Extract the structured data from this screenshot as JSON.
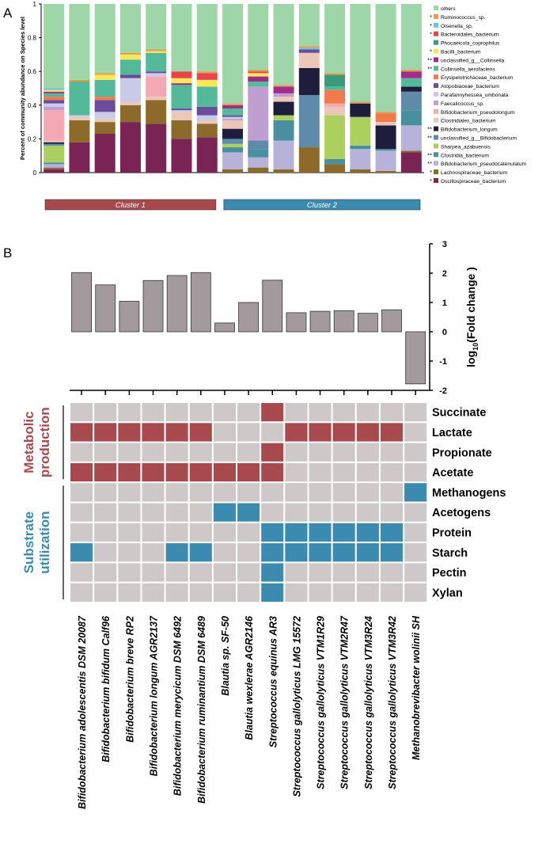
{
  "panel_labels": {
    "a": "A",
    "b": "B"
  },
  "chart_data": [
    {
      "type": "stacked-bar",
      "panel": "A",
      "ylabel": "Percent of community abundance on Species level",
      "ylim": [
        0,
        1
      ],
      "yticks": [
        "0",
        "0.2",
        "0.4",
        "0.6",
        "0.8",
        "1"
      ],
      "clusters": [
        {
          "label": "Cluster 1",
          "color": "#a84a4d",
          "samples": [
            1,
            7
          ]
        },
        {
          "label": "Cluster 2",
          "color": "#3b8bb0",
          "samples": [
            8,
            15
          ]
        }
      ],
      "species": [
        {
          "name": "Oscillospiraceae_bacterium",
          "color": "#7a2455",
          "mark": "*"
        },
        {
          "name": "Lachnospiraceae_bacterium",
          "color": "#8c6a2a",
          "mark": "*"
        },
        {
          "name": "Bifidobacterium_pseudocatenulatum",
          "color": "#b7b2d9",
          "mark": "**"
        },
        {
          "name": "Clostridia_bacterium",
          "color": "#4a8fa0",
          "mark": "**"
        },
        {
          "name": "Sharpea_azabuensis",
          "color": "#acd060",
          "mark": ""
        },
        {
          "name": "unclassified_g__Bifidobacterium",
          "color": "#5e8ba8",
          "mark": "**"
        },
        {
          "name": "Bifidobacterium_longum",
          "color": "#1e1e3c",
          "mark": "**"
        },
        {
          "name": "Clostridiales_bacterium",
          "color": "#ecc7b7",
          "mark": ""
        },
        {
          "name": "Bifidobacterium_pseudolongum",
          "color": "#f4a8b4",
          "mark": ""
        },
        {
          "name": "Faecalicoccus_sp.",
          "color": "#bf9fd1",
          "mark": ""
        },
        {
          "name": "Parafannyhessea_umbonata",
          "color": "#c9c9e8",
          "mark": ""
        },
        {
          "name": "Atopobiaceae_bacterium",
          "color": "#6a4c9c",
          "mark": ""
        },
        {
          "name": "Erysipelotrichaceae_bacterium",
          "color": "#f07a4a",
          "mark": ""
        },
        {
          "name": "Collinsella_aerofaciens",
          "color": "#53b998",
          "mark": "**"
        },
        {
          "name": "unclassified_g__Collinsella",
          "color": "#a02d8a",
          "mark": "**"
        },
        {
          "name": "Bacilli_bacterium",
          "color": "#f6e85a",
          "mark": "*"
        },
        {
          "name": "Phocaeicola_coprophilus",
          "color": "#3a9a7a",
          "mark": ""
        },
        {
          "name": "Bacteroidales_bacterium",
          "color": "#e8454a",
          "mark": "*"
        },
        {
          "name": "Olsenella_sp.",
          "color": "#6ac2e2",
          "mark": "*"
        },
        {
          "name": "Ruminococcus_sp.",
          "color": "#e89a4a",
          "mark": "*"
        },
        {
          "name": "others",
          "color": "#9fd6a8",
          "mark": ""
        }
      ],
      "samples": [
        [
          0.02,
          0.01,
          0.02,
          0.01,
          0.1,
          0.01,
          0.01,
          0.01,
          0.18,
          0.02,
          0.02,
          0.02,
          0.02,
          0.02,
          0.01,
          0.01,
          0.0,
          0.0,
          0.01,
          0.0
        ],
        [
          0.18,
          0.13,
          0.0,
          0.0,
          0.0,
          0.0,
          0.0,
          0.02,
          0.0,
          0.0,
          0.01,
          0.0,
          0.0,
          0.2,
          0.0,
          0.0,
          0.0,
          0.0,
          0.0,
          0.01
        ],
        [
          0.23,
          0.07,
          0.0,
          0.0,
          0.0,
          0.0,
          0.0,
          0.02,
          0.0,
          0.0,
          0.04,
          0.07,
          0.02,
          0.1,
          0.0,
          0.03,
          0.0,
          0.0,
          0.0,
          0.01
        ],
        [
          0.3,
          0.1,
          0.0,
          0.0,
          0.0,
          0.0,
          0.0,
          0.02,
          0.0,
          0.0,
          0.14,
          0.02,
          0.0,
          0.09,
          0.0,
          0.03,
          0.0,
          0.0,
          0.0,
          0.01
        ],
        [
          0.29,
          0.14,
          0.0,
          0.0,
          0.0,
          0.0,
          0.0,
          0.02,
          0.12,
          0.0,
          0.02,
          0.01,
          0.0,
          0.11,
          0.0,
          0.01,
          0.0,
          0.0,
          0.0,
          0.01
        ],
        [
          0.2,
          0.11,
          0.0,
          0.0,
          0.0,
          0.0,
          0.0,
          0.05,
          0.0,
          0.0,
          0.01,
          0.01,
          0.0,
          0.14,
          0.01,
          0.03,
          0.0,
          0.04,
          0.0,
          0.0
        ],
        [
          0.21,
          0.08,
          0.0,
          0.0,
          0.0,
          0.0,
          0.0,
          0.02,
          0.0,
          0.0,
          0.03,
          0.05,
          0.0,
          0.12,
          0.0,
          0.04,
          0.0,
          0.04,
          0.0,
          0.01
        ],
        [
          0.0,
          0.02,
          0.1,
          0.03,
          0.02,
          0.03,
          0.06,
          0.05,
          0.0,
          0.01,
          0.01,
          0.01,
          0.0,
          0.04,
          0.02,
          0.0,
          0.0,
          0.0,
          0.0,
          0.01
        ],
        [
          0.0,
          0.03,
          0.06,
          0.05,
          0.0,
          0.05,
          0.0,
          0.0,
          0.0,
          0.32,
          0.0,
          0.0,
          0.0,
          0.03,
          0.03,
          0.02,
          0.0,
          0.01,
          0.0,
          0.01
        ],
        [
          0.0,
          0.02,
          0.17,
          0.12,
          0.03,
          0.0,
          0.08,
          0.03,
          0.0,
          0.02,
          0.0,
          0.0,
          0.0,
          0.0,
          0.04,
          0.0,
          0.0,
          0.0,
          0.0,
          0.01
        ],
        [
          0.0,
          0.15,
          0.0,
          0.0,
          0.0,
          0.31,
          0.16,
          0.09,
          0.0,
          0.0,
          0.0,
          0.02,
          0.0,
          0.0,
          0.0,
          0.0,
          0.0,
          0.0,
          0.01,
          0.01
        ],
        [
          0.0,
          0.05,
          0.0,
          0.03,
          0.26,
          0.0,
          0.0,
          0.05,
          0.02,
          0.0,
          0.0,
          0.0,
          0.08,
          0.02,
          0.0,
          0.0,
          0.07,
          0.0,
          0.0,
          0.01
        ],
        [
          0.0,
          0.02,
          0.12,
          0.02,
          0.17,
          0.0,
          0.08,
          0.0,
          0.0,
          0.0,
          0.0,
          0.0,
          0.0,
          0.0,
          0.0,
          0.0,
          0.0,
          0.0,
          0.0,
          0.01
        ],
        [
          0.0,
          0.01,
          0.12,
          0.01,
          0.0,
          0.0,
          0.14,
          0.02,
          0.0,
          0.0,
          0.0,
          0.0,
          0.05,
          0.0,
          0.0,
          0.0,
          0.0,
          0.0,
          0.0,
          0.01
        ],
        [
          0.12,
          0.01,
          0.15,
          0.09,
          0.0,
          0.11,
          0.03,
          0.0,
          0.0,
          0.0,
          0.0,
          0.0,
          0.0,
          0.05,
          0.04,
          0.0,
          0.0,
          0.0,
          0.0,
          0.01
        ]
      ]
    },
    {
      "type": "bar",
      "panel": "B",
      "ylabel_main": "log",
      "ylabel_sub": "10",
      "ylabel_rest": "(Fold change )",
      "ylim": [
        -2,
        3
      ],
      "yticks": [
        "-2",
        "-1",
        "0",
        "1",
        "2",
        "3"
      ],
      "bar_color": "#a39a9e",
      "categories": [
        "Bifidobacterium adolescentis DSM 20087",
        "Bifidobacterium bifidum Calf96",
        "Bifidobacterium breve RP2",
        "Bifidobacterium longum AGR2137",
        "Bifidobacterium merycicum DSM 6492",
        "Bifidobacterium ruminantium DSM 6489",
        "Blautia sp. SF-50",
        "Blautia wexlerae AGR2146",
        "Streptococcus equinus AR3",
        "Streptococcus gallolyticus LMG 15572",
        "Streptococcus gallolyticus VTM1R29",
        "Streptococcus gallolyticus VTM2R47",
        "Streptococcus gallolyticus VTM3R24",
        "Streptococcus gallolyticus VTM3R42",
        "Methanobrevibacter wolinii SH"
      ],
      "values": [
        2.02,
        1.6,
        1.04,
        1.75,
        1.92,
        2.02,
        0.3,
        1.0,
        1.76,
        0.65,
        0.7,
        0.72,
        0.63,
        0.75,
        -1.78
      ]
    },
    {
      "type": "heatmap",
      "panel": "B",
      "groups": [
        {
          "label_lines": [
            "Metabolic",
            "production"
          ],
          "color": "#a84a4d",
          "rows": [
            0,
            3
          ]
        },
        {
          "label_lines": [
            "Substrate",
            "utilization"
          ],
          "color": "#3b8bb0",
          "rows": [
            4,
            9
          ]
        }
      ],
      "rows": [
        "Succinate",
        "Lactate",
        "Propionate",
        "Acetate",
        "Methanogens",
        "Acetogens",
        "Protein",
        "Starch",
        "Pectin",
        "Xylan"
      ],
      "colors": {
        "empty": "#cfc8c8",
        "production": "#a84a4d",
        "utilization": "#3b8bb0"
      },
      "matrix": [
        [
          0,
          0,
          0,
          0,
          0,
          0,
          0,
          0,
          1,
          0,
          0,
          0,
          0,
          0,
          0
        ],
        [
          1,
          1,
          1,
          1,
          1,
          1,
          0,
          0,
          0,
          1,
          1,
          1,
          1,
          1,
          0
        ],
        [
          0,
          0,
          0,
          0,
          0,
          0,
          0,
          0,
          1,
          0,
          0,
          0,
          0,
          0,
          0
        ],
        [
          1,
          1,
          1,
          1,
          1,
          1,
          1,
          1,
          1,
          0,
          0,
          0,
          0,
          0,
          0
        ],
        [
          0,
          0,
          0,
          0,
          0,
          0,
          0,
          0,
          0,
          0,
          0,
          0,
          0,
          0,
          2
        ],
        [
          0,
          0,
          0,
          0,
          0,
          0,
          2,
          2,
          0,
          0,
          0,
          0,
          0,
          0,
          0
        ],
        [
          0,
          0,
          0,
          0,
          0,
          0,
          0,
          0,
          2,
          2,
          2,
          2,
          2,
          2,
          0
        ],
        [
          2,
          0,
          0,
          0,
          2,
          2,
          0,
          0,
          2,
          2,
          2,
          2,
          2,
          2,
          0
        ],
        [
          0,
          0,
          0,
          0,
          0,
          0,
          0,
          0,
          2,
          0,
          0,
          0,
          0,
          0,
          0
        ],
        [
          0,
          0,
          0,
          0,
          0,
          0,
          0,
          0,
          2,
          0,
          0,
          0,
          0,
          0,
          0
        ]
      ]
    }
  ]
}
